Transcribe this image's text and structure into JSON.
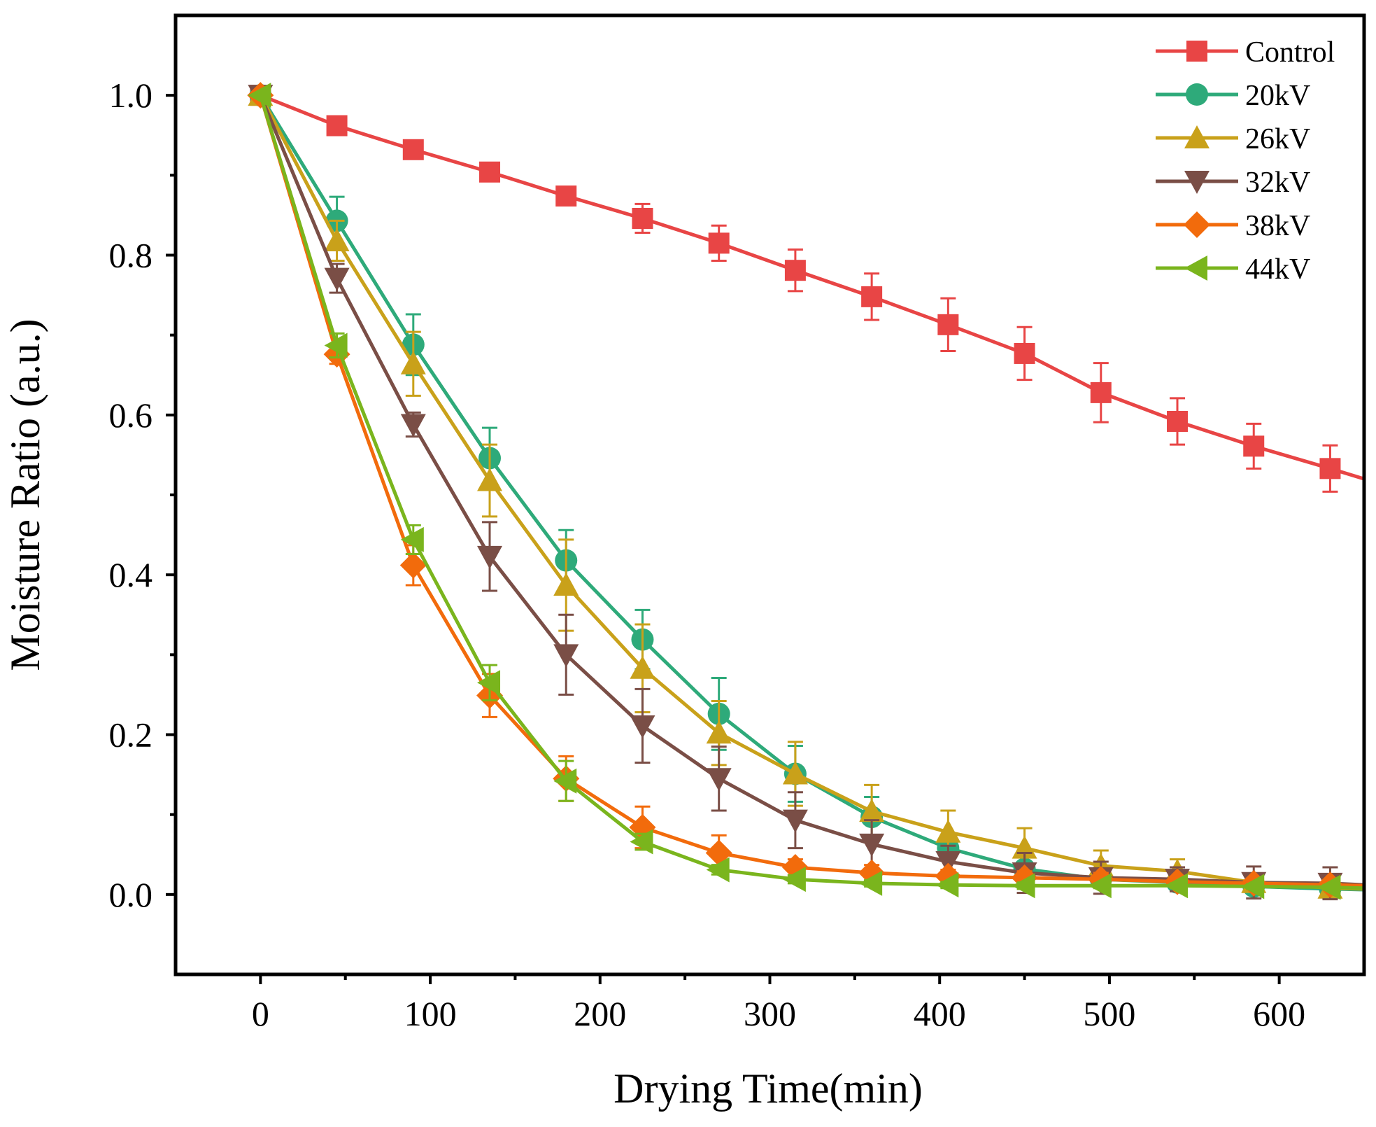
{
  "chart_data": {
    "type": "line",
    "title": "",
    "xlabel": "Drying Time(min)",
    "ylabel": "Moisture Ratio (a.u.)",
    "xlim": [
      -50,
      650
    ],
    "ylim": [
      -0.1,
      1.1
    ],
    "xticks": [
      0,
      100,
      200,
      300,
      400,
      500,
      600
    ],
    "xtick_labels": [
      "0",
      "100",
      "200",
      "300",
      "400",
      "500",
      "600"
    ],
    "yticks": [
      0.0,
      0.2,
      0.4,
      0.6,
      0.8,
      1.0
    ],
    "ytick_labels": [
      "0.0",
      "0.2",
      "0.4",
      "0.6",
      "0.8",
      "1.0"
    ],
    "legend_position": "top-right",
    "x": [
      0,
      45,
      90,
      135,
      180,
      225,
      270,
      315,
      360,
      405,
      450,
      495,
      540,
      585,
      630
    ],
    "series": [
      {
        "name": "Control",
        "marker": "square",
        "color": "#e84545",
        "values": [
          1.0,
          0.962,
          0.932,
          0.904,
          0.874,
          0.846,
          0.815,
          0.781,
          0.748,
          0.713,
          0.677,
          0.628,
          0.592,
          0.561,
          0.533
        ],
        "errors": [
          0.0,
          0.005,
          0.006,
          0.007,
          0.009,
          0.018,
          0.022,
          0.026,
          0.029,
          0.033,
          0.033,
          0.037,
          0.029,
          0.028,
          0.029
        ],
        "extend_to": [
          650,
          0.52
        ]
      },
      {
        "name": "20kV",
        "marker": "circle",
        "color": "#2eaa7a",
        "values": [
          1.0,
          0.843,
          0.688,
          0.546,
          0.418,
          0.319,
          0.226,
          0.151,
          0.097,
          0.058,
          0.032,
          0.019,
          0.015,
          0.01,
          0.007
        ],
        "errors": [
          0.0,
          0.03,
          0.038,
          0.038,
          0.038,
          0.037,
          0.045,
          0.035,
          0.025,
          0.013,
          0.008,
          0.005,
          0.005,
          0.004,
          0.003
        ],
        "extend_to": [
          650,
          0.006
        ]
      },
      {
        "name": "26kV",
        "marker": "triangle-up",
        "color": "#c9a11a",
        "values": [
          1.0,
          0.818,
          0.664,
          0.518,
          0.387,
          0.283,
          0.202,
          0.151,
          0.104,
          0.078,
          0.058,
          0.036,
          0.029,
          0.015,
          0.008
        ],
        "errors": [
          0.0,
          0.025,
          0.04,
          0.045,
          0.057,
          0.055,
          0.04,
          0.04,
          0.033,
          0.027,
          0.025,
          0.019,
          0.015,
          0.01,
          0.008
        ],
        "extend_to": [
          650,
          0.007
        ]
      },
      {
        "name": "32kV",
        "marker": "triangle-down",
        "color": "#7a4e46",
        "values": [
          1.0,
          0.771,
          0.588,
          0.423,
          0.3,
          0.211,
          0.145,
          0.093,
          0.063,
          0.041,
          0.027,
          0.021,
          0.019,
          0.015,
          0.014
        ],
        "errors": [
          0.0,
          0.018,
          0.015,
          0.043,
          0.05,
          0.046,
          0.04,
          0.035,
          0.03,
          0.02,
          0.025,
          0.02,
          0.015,
          0.02,
          0.02
        ],
        "extend_to": [
          650,
          0.012
        ]
      },
      {
        "name": "38kV",
        "marker": "diamond",
        "color": "#f26b0c",
        "values": [
          1.0,
          0.676,
          0.412,
          0.249,
          0.145,
          0.084,
          0.052,
          0.034,
          0.027,
          0.023,
          0.021,
          0.019,
          0.016,
          0.014,
          0.012
        ],
        "errors": [
          0.0,
          0.012,
          0.025,
          0.027,
          0.028,
          0.026,
          0.022,
          0.01,
          0.01,
          0.008,
          0.008,
          0.008,
          0.006,
          0.006,
          0.006
        ],
        "extend_to": [
          650,
          0.011
        ]
      },
      {
        "name": "44kV",
        "marker": "triangle-left",
        "color": "#7ab51d",
        "values": [
          1.0,
          0.687,
          0.444,
          0.265,
          0.142,
          0.066,
          0.031,
          0.019,
          0.014,
          0.012,
          0.011,
          0.011,
          0.011,
          0.01,
          0.009
        ],
        "errors": [
          0.0,
          0.015,
          0.018,
          0.022,
          0.025,
          0.01,
          0.006,
          0.005,
          0.004,
          0.004,
          0.004,
          0.003,
          0.003,
          0.003,
          0.003
        ],
        "extend_to": [
          650,
          0.008
        ]
      }
    ]
  }
}
